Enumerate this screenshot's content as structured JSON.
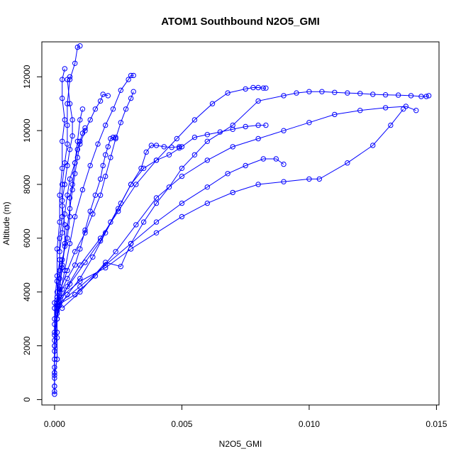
{
  "chart_data": {
    "type": "line",
    "title": "ATOM1 Southbound N2O5_GMI",
    "xlabel": "N2O5_GMI",
    "ylabel": "Altitude (m)",
    "xlim": [
      -0.0005,
      0.0151
    ],
    "ylim": [
      -200,
      13300
    ],
    "x_ticks": [
      0.0,
      0.005,
      0.01,
      0.015
    ],
    "x_tick_labels": [
      "0.000",
      "0.005",
      "0.010",
      "0.015"
    ],
    "y_ticks": [
      0,
      2000,
      4000,
      6000,
      8000,
      10000,
      12000
    ],
    "y_tick_labels": [
      "0",
      "2000",
      "4000",
      "6000",
      "8000",
      "10000",
      "12000"
    ],
    "grid": false,
    "legend": "none",
    "marker": "open-circle",
    "color": "#0000ff",
    "series": [
      {
        "values": [
          [
            0.0,
            200
          ],
          [
            0.0,
            500
          ],
          [
            0.0,
            900
          ],
          [
            0.0001,
            1500
          ],
          [
            0.0001,
            2300
          ],
          [
            0.0001,
            3000
          ],
          [
            0.0002,
            3500
          ],
          [
            0.0003,
            4100
          ],
          [
            0.0005,
            4500
          ],
          [
            0.0008,
            5000
          ],
          [
            0.001,
            5600
          ],
          [
            0.0012,
            6300
          ],
          [
            0.0014,
            7000
          ],
          [
            0.0016,
            7600
          ],
          [
            0.0018,
            8200
          ],
          [
            0.0019,
            8700
          ],
          [
            0.002,
            9100
          ],
          [
            0.0021,
            9400
          ],
          [
            0.0022,
            9700
          ],
          [
            0.0023,
            9750
          ],
          [
            0.0024,
            9750
          ]
        ]
      },
      {
        "values": [
          [
            0.0,
            300
          ],
          [
            0.0,
            1000
          ],
          [
            0.0,
            2000
          ],
          [
            0.0,
            3000
          ],
          [
            0.0001,
            3800
          ],
          [
            0.0002,
            4500
          ],
          [
            0.0003,
            5200
          ],
          [
            0.0005,
            6000
          ],
          [
            0.0006,
            6800
          ],
          [
            0.0006,
            7500
          ],
          [
            0.0007,
            8000
          ],
          [
            0.0008,
            8800
          ],
          [
            0.0009,
            9600
          ],
          [
            0.001,
            10400
          ],
          [
            0.0011,
            10800
          ]
        ]
      },
      {
        "values": [
          [
            0.0,
            500
          ],
          [
            0.0,
            1500
          ],
          [
            0.0001,
            2500
          ],
          [
            0.0001,
            3400
          ],
          [
            0.0002,
            4200
          ],
          [
            0.0003,
            5000
          ],
          [
            0.0004,
            5800
          ],
          [
            0.0004,
            6500
          ],
          [
            0.0003,
            7200
          ],
          [
            0.0003,
            8000
          ],
          [
            0.0004,
            8800
          ],
          [
            0.0005,
            9500
          ],
          [
            0.0005,
            10200
          ],
          [
            0.0005,
            11000
          ],
          [
            0.0006,
            11900
          ],
          [
            0.0008,
            12500
          ],
          [
            0.0009,
            13100
          ],
          [
            0.001,
            13150
          ]
        ]
      },
      {
        "values": [
          [
            0.0,
            800
          ],
          [
            0.0,
            2000
          ],
          [
            0.0001,
            3000
          ],
          [
            0.0002,
            3800
          ],
          [
            0.0004,
            4800
          ],
          [
            0.0006,
            5800
          ],
          [
            0.0008,
            6800
          ],
          [
            0.0011,
            7800
          ],
          [
            0.0014,
            8700
          ],
          [
            0.0017,
            9500
          ],
          [
            0.002,
            10200
          ],
          [
            0.0023,
            10800
          ],
          [
            0.0026,
            11500
          ],
          [
            0.0029,
            11900
          ],
          [
            0.003,
            12050
          ],
          [
            0.0031,
            12050
          ]
        ]
      },
      {
        "values": [
          [
            0.0001,
            3300
          ],
          [
            0.0005,
            3900
          ],
          [
            0.001,
            4500
          ],
          [
            0.0015,
            5300
          ],
          [
            0.002,
            6200
          ],
          [
            0.0025,
            7100
          ],
          [
            0.003,
            8000
          ],
          [
            0.0035,
            8600
          ],
          [
            0.004,
            8900
          ],
          [
            0.0045,
            9100
          ],
          [
            0.005,
            9400
          ],
          [
            0.0055,
            9750
          ],
          [
            0.006,
            9850
          ],
          [
            0.0065,
            9950
          ],
          [
            0.007,
            10050
          ],
          [
            0.0075,
            10150
          ],
          [
            0.008,
            10200
          ],
          [
            0.0083,
            10200
          ]
        ]
      },
      {
        "values": [
          [
            0.0001,
            3500
          ],
          [
            0.0008,
            3900
          ],
          [
            0.0016,
            4600
          ],
          [
            0.0024,
            5500
          ],
          [
            0.0032,
            6500
          ],
          [
            0.004,
            7500
          ],
          [
            0.005,
            8300
          ],
          [
            0.006,
            8900
          ],
          [
            0.007,
            9400
          ],
          [
            0.008,
            9700
          ],
          [
            0.009,
            10000
          ],
          [
            0.01,
            10300
          ],
          [
            0.011,
            10600
          ],
          [
            0.012,
            10750
          ],
          [
            0.013,
            10850
          ],
          [
            0.0138,
            10900
          ],
          [
            0.0142,
            10750
          ]
        ]
      },
      {
        "values": [
          [
            0.0002,
            3600
          ],
          [
            0.001,
            4200
          ],
          [
            0.002,
            5000
          ],
          [
            0.003,
            5800
          ],
          [
            0.004,
            6600
          ],
          [
            0.005,
            7300
          ],
          [
            0.006,
            7900
          ],
          [
            0.0068,
            8400
          ],
          [
            0.0075,
            8700
          ],
          [
            0.0082,
            8950
          ],
          [
            0.0087,
            8950
          ],
          [
            0.009,
            8750
          ]
        ]
      },
      {
        "values": [
          [
            0.0001,
            3700
          ],
          [
            0.001,
            4400
          ],
          [
            0.002,
            4900
          ],
          [
            0.003,
            5600
          ],
          [
            0.004,
            6200
          ],
          [
            0.005,
            6800
          ],
          [
            0.006,
            7300
          ],
          [
            0.007,
            7700
          ],
          [
            0.008,
            8000
          ],
          [
            0.009,
            8100
          ],
          [
            0.01,
            8200
          ],
          [
            0.0104,
            8200
          ],
          [
            0.0115,
            8800
          ],
          [
            0.0125,
            9450
          ],
          [
            0.0132,
            10200
          ],
          [
            0.0137,
            10800
          ]
        ]
      },
      {
        "values": [
          [
            0.0003,
            3400
          ],
          [
            0.001,
            4000
          ],
          [
            0.002,
            5100
          ],
          [
            0.0026,
            4950
          ],
          [
            0.003,
            5800
          ],
          [
            0.0035,
            6600
          ],
          [
            0.004,
            7300
          ],
          [
            0.0045,
            7900
          ],
          [
            0.005,
            8600
          ],
          [
            0.0055,
            9100
          ],
          [
            0.006,
            9600
          ],
          [
            0.007,
            10200
          ],
          [
            0.008,
            11100
          ],
          [
            0.009,
            11300
          ],
          [
            0.0095,
            11400
          ],
          [
            0.01,
            11450
          ],
          [
            0.0105,
            11450
          ],
          [
            0.011,
            11420
          ],
          [
            0.0115,
            11400
          ],
          [
            0.012,
            11380
          ],
          [
            0.0125,
            11350
          ],
          [
            0.013,
            11330
          ],
          [
            0.0135,
            11320
          ],
          [
            0.014,
            11300
          ],
          [
            0.0144,
            11270
          ],
          [
            0.0146,
            11270
          ],
          [
            0.0147,
            11300
          ]
        ]
      },
      {
        "values": [
          [
            0.0002,
            3500
          ],
          [
            0.0005,
            4200
          ],
          [
            0.001,
            5000
          ],
          [
            0.0018,
            6000
          ],
          [
            0.0025,
            7000
          ],
          [
            0.0032,
            8000
          ],
          [
            0.004,
            8900
          ],
          [
            0.0048,
            9700
          ],
          [
            0.0055,
            10400
          ],
          [
            0.0062,
            11000
          ],
          [
            0.0068,
            11400
          ],
          [
            0.0075,
            11550
          ],
          [
            0.0078,
            11600
          ],
          [
            0.008,
            11600
          ],
          [
            0.0082,
            11580
          ],
          [
            0.0083,
            11580
          ]
        ]
      },
      {
        "values": [
          [
            0.0001,
            3600
          ],
          [
            0.0006,
            4300
          ],
          [
            0.0012,
            5100
          ],
          [
            0.0018,
            5900
          ],
          [
            0.0022,
            6600
          ],
          [
            0.0026,
            7300
          ],
          [
            0.003,
            8000
          ],
          [
            0.0034,
            8600
          ],
          [
            0.0036,
            9200
          ],
          [
            0.0038,
            9450
          ],
          [
            0.004,
            9450
          ],
          [
            0.0043,
            9400
          ],
          [
            0.0046,
            9380
          ],
          [
            0.0049,
            9400
          ],
          [
            0.0049,
            9350
          ]
        ]
      },
      {
        "values": [
          [
            0.0,
            3400
          ],
          [
            0.0002,
            4000
          ],
          [
            0.0005,
            4800
          ],
          [
            0.0008,
            5500
          ],
          [
            0.0012,
            6200
          ],
          [
            0.0015,
            6900
          ],
          [
            0.0018,
            7600
          ],
          [
            0.002,
            8300
          ],
          [
            0.0022,
            9000
          ],
          [
            0.0024,
            9700
          ],
          [
            0.0026,
            10300
          ],
          [
            0.0028,
            10800
          ],
          [
            0.003,
            11200
          ],
          [
            0.0031,
            11450
          ]
        ]
      },
      {
        "values": [
          [
            0.0,
            2500
          ],
          [
            0.0001,
            3300
          ],
          [
            0.0002,
            4100
          ],
          [
            0.0003,
            4900
          ],
          [
            0.0004,
            5700
          ],
          [
            0.0005,
            6400
          ],
          [
            0.0006,
            7100
          ],
          [
            0.0007,
            7800
          ],
          [
            0.0008,
            8400
          ],
          [
            0.0009,
            9000
          ],
          [
            0.001,
            9500
          ],
          [
            0.0012,
            10000
          ],
          [
            0.0014,
            10400
          ],
          [
            0.0016,
            10800
          ],
          [
            0.0018,
            11100
          ],
          [
            0.0019,
            11350
          ],
          [
            0.0021,
            11300
          ]
        ]
      },
      {
        "values": [
          [
            0.0,
            1000
          ],
          [
            0.0,
            2200
          ],
          [
            0.0001,
            3200
          ],
          [
            0.0001,
            4000
          ],
          [
            0.0002,
            4800
          ],
          [
            0.0002,
            5500
          ],
          [
            0.0003,
            6200
          ],
          [
            0.0004,
            6900
          ],
          [
            0.0005,
            7600
          ],
          [
            0.0006,
            8200
          ],
          [
            0.0008,
            8800
          ],
          [
            0.0009,
            9300
          ],
          [
            0.001,
            9600
          ],
          [
            0.0011,
            9900
          ],
          [
            0.0012,
            10100
          ]
        ]
      },
      {
        "values": [
          [
            0.0,
            1800
          ],
          [
            0.0,
            2800
          ],
          [
            0.0001,
            3600
          ],
          [
            0.0001,
            4400
          ],
          [
            0.0002,
            5200
          ],
          [
            0.0002,
            6000
          ],
          [
            0.0003,
            6800
          ],
          [
            0.0003,
            7400
          ],
          [
            0.0004,
            8000
          ],
          [
            0.0005,
            8700
          ],
          [
            0.0006,
            9300
          ],
          [
            0.0007,
            9800
          ],
          [
            0.0007,
            10400
          ],
          [
            0.0006,
            11000
          ],
          [
            0.0005,
            11900
          ],
          [
            0.0006,
            12000
          ]
        ]
      },
      {
        "values": [
          [
            0.0,
            200
          ],
          [
            0.0,
            1200
          ],
          [
            0.0,
            2400
          ],
          [
            0.0,
            3600
          ],
          [
            0.0001,
            4600
          ],
          [
            0.0001,
            5600
          ],
          [
            0.0002,
            6600
          ],
          [
            0.0002,
            7600
          ],
          [
            0.0003,
            8600
          ],
          [
            0.0003,
            9600
          ],
          [
            0.0004,
            10400
          ],
          [
            0.0003,
            11200
          ],
          [
            0.0003,
            11900
          ],
          [
            0.0004,
            12300
          ]
        ]
      }
    ]
  }
}
